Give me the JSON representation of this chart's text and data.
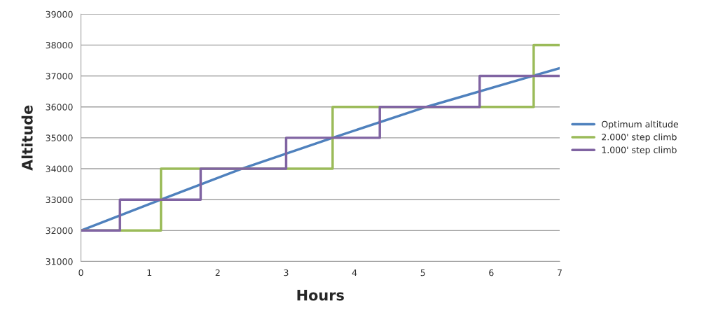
{
  "chart_data": {
    "type": "line",
    "xlabel": "Hours",
    "ylabel": "Altitude",
    "xlim": [
      0,
      7
    ],
    "xticks": [
      0,
      1,
      2,
      3,
      4,
      5,
      6,
      7
    ],
    "ylim": [
      31000,
      39000
    ],
    "yticks": [
      31000,
      32000,
      33000,
      34000,
      35000,
      36000,
      37000,
      38000,
      39000
    ],
    "grid": "y",
    "legend": "right",
    "series": [
      {
        "name": "Optimum altitude",
        "color": "#4f81bd",
        "x": [
          0,
          1.17,
          2.35,
          3.68,
          5.05,
          6.6,
          7
        ],
        "values": [
          32000,
          33000,
          34000,
          35000,
          36000,
          37000,
          37250
        ]
      },
      {
        "name": "2.000' step climb",
        "color": "#9bbb59",
        "x": [
          0,
          1.17,
          1.17,
          3.68,
          3.68,
          6.62,
          6.62,
          7
        ],
        "values": [
          32000,
          32000,
          34000,
          34000,
          36000,
          36000,
          38000,
          38000
        ]
      },
      {
        "name": "1.000' step climb",
        "color": "#8064a2",
        "x": [
          0,
          0.57,
          0.57,
          1.75,
          1.75,
          3.0,
          3.0,
          4.37,
          4.37,
          5.83,
          5.83,
          7
        ],
        "values": [
          32000,
          32000,
          33000,
          33000,
          34000,
          34000,
          35000,
          35000,
          36000,
          36000,
          37000,
          37000
        ]
      }
    ]
  }
}
